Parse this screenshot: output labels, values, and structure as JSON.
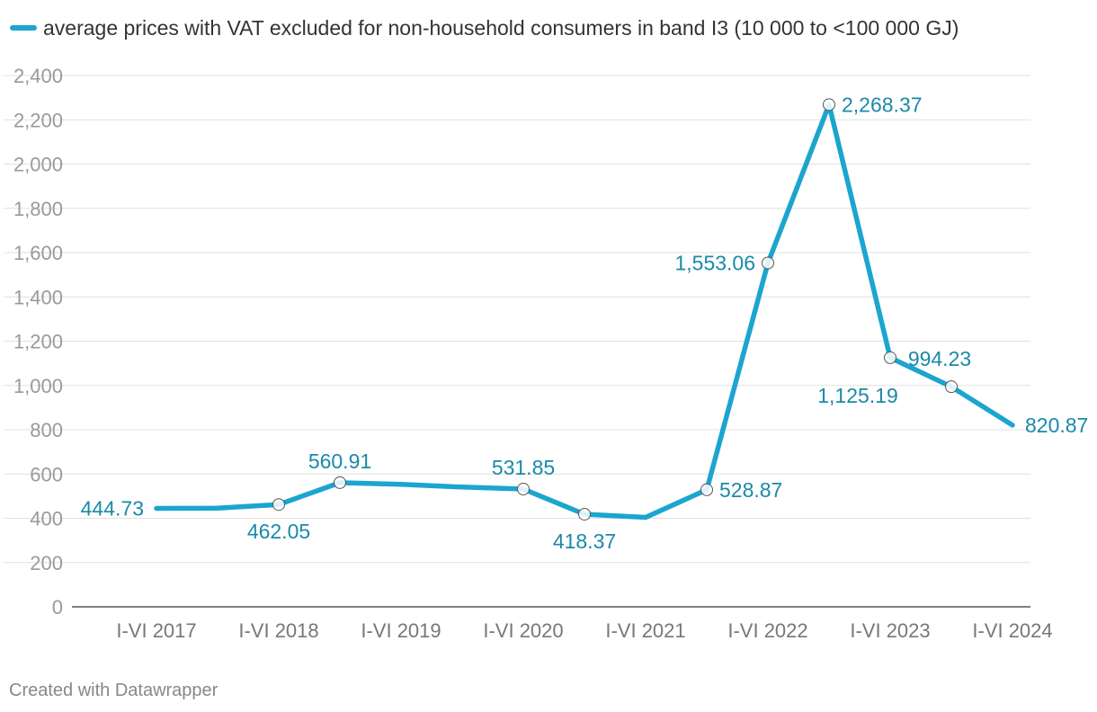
{
  "chart_data": {
    "type": "line",
    "title": "",
    "legend": {
      "label": "average prices with VAT excluded for non-household consumers in band I3 (10 000 to <100 000 GJ)",
      "position": "top-left"
    },
    "x": [
      2017,
      2017.5,
      2018,
      2018.5,
      2019,
      2019.5,
      2020,
      2020.5,
      2021,
      2021.5,
      2022,
      2022.5,
      2023,
      2023.5,
      2024
    ],
    "x_tick_labels": [
      "I-VI 2017",
      "I-VI 2018",
      "I-VI 2019",
      "I-VI 2020",
      "I-VI 2021",
      "I-VI 2022",
      "I-VI 2023",
      "I-VI 2024"
    ],
    "x_tick_values": [
      2017,
      2018,
      2019,
      2020,
      2021,
      2022,
      2023,
      2024
    ],
    "series": [
      {
        "name": "average prices with VAT excluded for non-household consumers in band I3 (10 000 to <100 000 GJ)",
        "values": [
          444.73,
          446,
          462.05,
          560.91,
          553,
          541,
          531.85,
          418.37,
          404,
          528.87,
          1553.06,
          2268.37,
          1125.19,
          994.23,
          820.87
        ],
        "color": "#1ba5cf"
      }
    ],
    "markers": [
      {
        "index": 2,
        "label": "462.05",
        "anchor": "below"
      },
      {
        "index": 3,
        "label": "560.91",
        "anchor": "above"
      },
      {
        "index": 6,
        "label": "531.85",
        "anchor": "above"
      },
      {
        "index": 7,
        "label": "418.37",
        "anchor": "below"
      },
      {
        "index": 9,
        "label": "528.87",
        "anchor": "right"
      },
      {
        "index": 10,
        "label": "1,553.06",
        "anchor": "left"
      },
      {
        "index": 11,
        "label": "2,268.37",
        "anchor": "right"
      },
      {
        "index": 12,
        "label": "1,125.19",
        "anchor": "below-left"
      },
      {
        "index": 13,
        "label": "994.23",
        "anchor": "above-left"
      }
    ],
    "end_labels": [
      {
        "index": 0,
        "label": "444.73",
        "anchor": "left"
      },
      {
        "index": 14,
        "label": "820.87",
        "anchor": "right"
      }
    ],
    "ylim": [
      0,
      2400
    ],
    "y_ticks": [
      0,
      200,
      400,
      600,
      800,
      1000,
      1200,
      1400,
      1600,
      1800,
      2000,
      2200,
      2400
    ],
    "y_tick_labels": [
      "0",
      "200",
      "400",
      "600",
      "800",
      "1,000",
      "1,200",
      "1,400",
      "1,600",
      "1,800",
      "2,000",
      "2,200",
      "2,400"
    ],
    "xlabel": "",
    "ylabel": "",
    "grid": true
  },
  "footer": "Created with Datawrapper"
}
